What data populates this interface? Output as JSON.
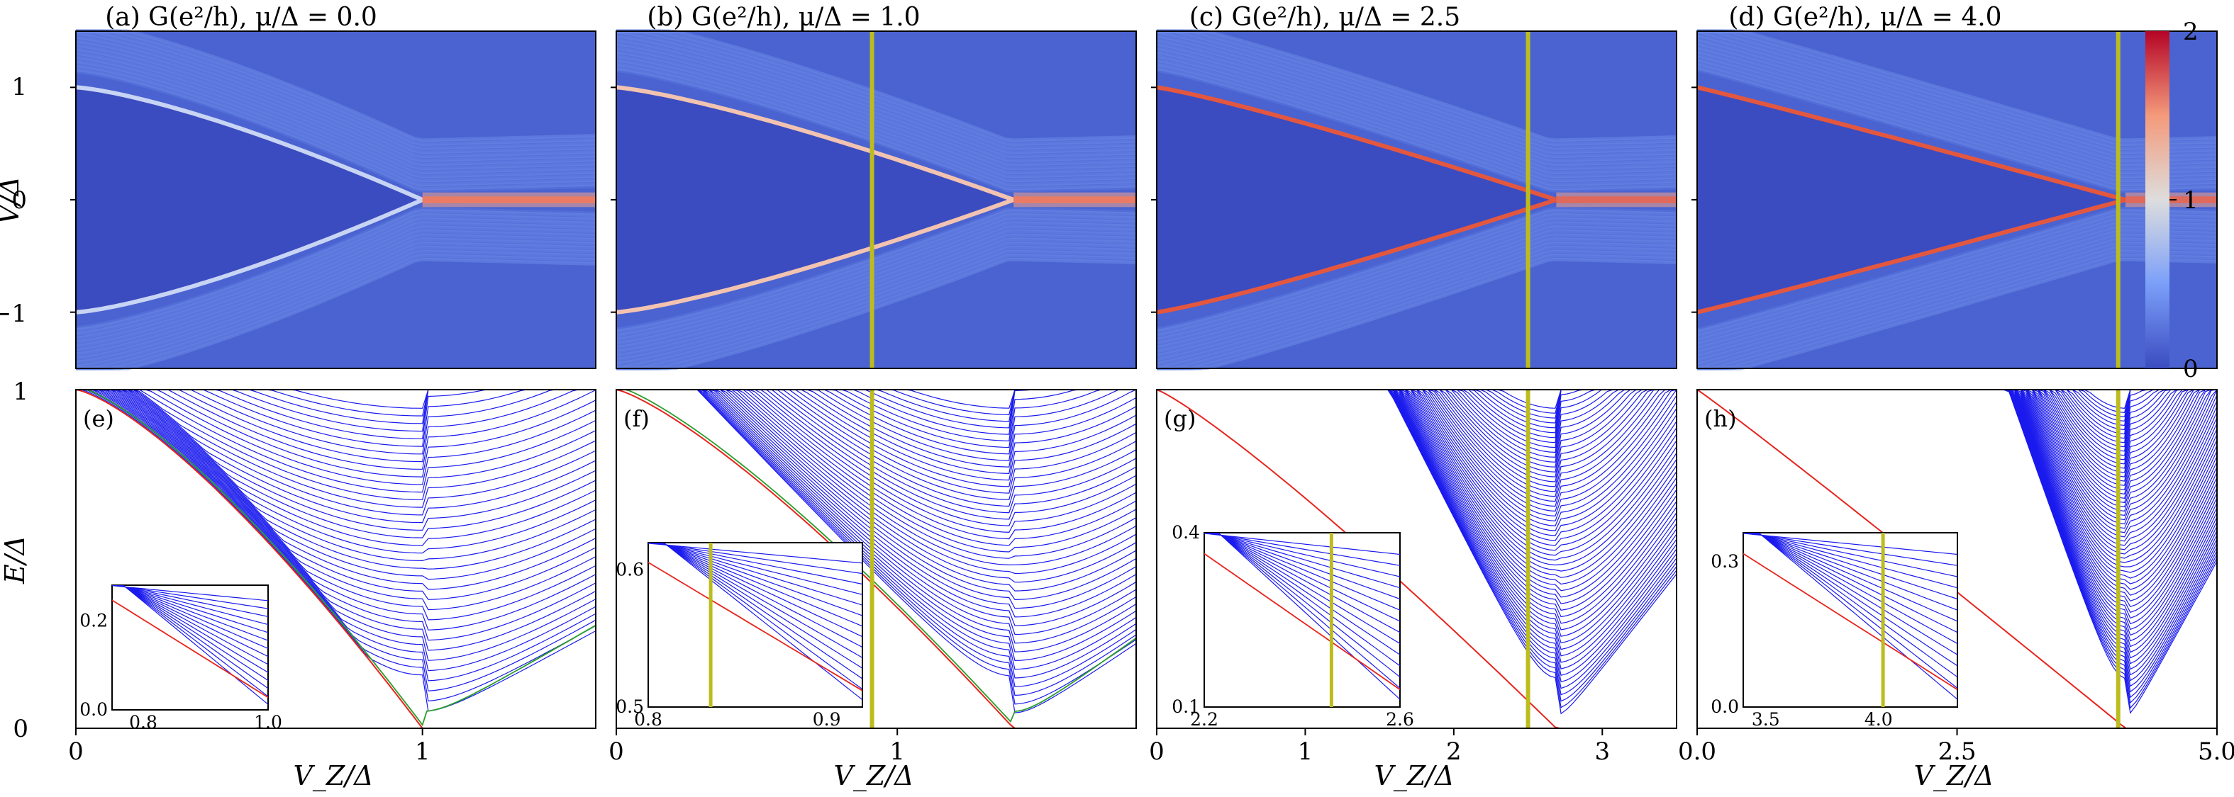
{
  "figure": {
    "colorbar": {
      "ticks": [
        "0",
        "1",
        "2"
      ],
      "range": [
        0,
        2
      ],
      "colormap": "coolwarm",
      "colors": [
        "#3b4cc0",
        "#dddddd",
        "#b40426"
      ]
    },
    "top_ylabel": "V/Δ",
    "bottom_ylabel": "E/Δ",
    "xlabel": "V_Z/Δ",
    "highlight_color": "#bcbc1e",
    "spectrum_color": "#1a1aee",
    "lowest_color": "#e8241c",
    "second_color": "#2a9d2a",
    "top_yticks": [
      "1",
      "0",
      "−1"
    ],
    "bottom_yticks": [
      "1",
      "0"
    ]
  },
  "chart_data": [
    {
      "type": "heatmap",
      "panel": "a",
      "title": "(a) G(e²/h), μ/Δ = 0.0",
      "mu": 0.0,
      "xlim": [
        0,
        1.5
      ],
      "ylim": [
        -1.5,
        1.5
      ],
      "vz_c": 1.0,
      "marker_x": null
    },
    {
      "type": "heatmap",
      "panel": "b",
      "title": "(b) G(e²/h), μ/Δ = 1.0",
      "mu": 1.0,
      "xlim": [
        0,
        1.85
      ],
      "ylim": [
        -1.5,
        1.5
      ],
      "vz_c": 1.414,
      "marker_x": 0.91
    },
    {
      "type": "heatmap",
      "panel": "c",
      "title": "(c) G(e²/h), μ/Δ = 2.5",
      "mu": 2.5,
      "xlim": [
        0,
        3.5
      ],
      "ylim": [
        -1.5,
        1.5
      ],
      "vz_c": 2.69,
      "marker_x": 2.5
    },
    {
      "type": "heatmap",
      "panel": "d",
      "title": "(d) G(e²/h), μ/Δ = 4.0",
      "mu": 4.0,
      "xlim": [
        0,
        5.0
      ],
      "ylim": [
        -1.5,
        1.5
      ],
      "vz_c": 4.12,
      "marker_x": 4.05
    },
    {
      "type": "line",
      "panel": "e",
      "label": "(e)",
      "mu": 0.0,
      "xlim": [
        0,
        1.5
      ],
      "ylim": [
        0,
        1
      ],
      "xticks": [
        {
          "v": 0,
          "t": "0"
        },
        {
          "v": 1,
          "t": "1"
        }
      ],
      "vz_c": 1.0,
      "marker_x": null,
      "n_levels": 36,
      "inset": {
        "xlim": [
          0.75,
          1.0
        ],
        "ylim": [
          0,
          0.28
        ],
        "xticks": [
          {
            "v": 0.8,
            "t": "0.8"
          },
          {
            "v": 1.0,
            "t": "1.0"
          }
        ],
        "yticks": [
          {
            "v": 0.0,
            "t": "0.0"
          },
          {
            "v": 0.2,
            "t": "0.2"
          }
        ],
        "marker_x": null
      }
    },
    {
      "type": "line",
      "panel": "f",
      "label": "(f)",
      "mu": 1.0,
      "xlim": [
        0,
        1.85
      ],
      "ylim": [
        0,
        1
      ],
      "xticks": [
        {
          "v": 0,
          "t": "0"
        },
        {
          "v": 1,
          "t": "1"
        }
      ],
      "vz_c": 1.414,
      "marker_x": 0.91,
      "n_levels": 42,
      "inset": {
        "xlim": [
          0.8,
          0.92
        ],
        "ylim": [
          0.5,
          0.62
        ],
        "xticks": [
          {
            "v": 0.8,
            "t": "0.8"
          },
          {
            "v": 0.9,
            "t": "0.9"
          }
        ],
        "yticks": [
          {
            "v": 0.5,
            "t": "0.5"
          },
          {
            "v": 0.6,
            "t": "0.6"
          }
        ],
        "marker_x": 0.835
      }
    },
    {
      "type": "line",
      "panel": "g",
      "label": "(g)",
      "mu": 2.5,
      "xlim": [
        0,
        3.5
      ],
      "ylim": [
        0,
        1
      ],
      "xticks": [
        {
          "v": 0,
          "t": "0"
        },
        {
          "v": 1,
          "t": "1"
        },
        {
          "v": 2,
          "t": "2"
        },
        {
          "v": 3,
          "t": "3"
        }
      ],
      "vz_c": 2.69,
      "marker_x": 2.5,
      "n_levels": 56,
      "inset": {
        "xlim": [
          2.2,
          2.6
        ],
        "ylim": [
          0.1,
          0.4
        ],
        "xticks": [
          {
            "v": 2.2,
            "t": "2.2"
          },
          {
            "v": 2.6,
            "t": "2.6"
          }
        ],
        "yticks": [
          {
            "v": 0.1,
            "t": "0.1"
          },
          {
            "v": 0.4,
            "t": "0.4"
          }
        ],
        "marker_x": 2.46
      }
    },
    {
      "type": "line",
      "panel": "h",
      "label": "(h)",
      "mu": 4.0,
      "xlim": [
        0,
        5.0
      ],
      "ylim": [
        0,
        1
      ],
      "xticks": [
        {
          "v": 0,
          "t": "0.0"
        },
        {
          "v": 2.5,
          "t": "2.5"
        },
        {
          "v": 5,
          "t": "5.0"
        }
      ],
      "vz_c": 4.12,
      "marker_x": 4.05,
      "n_levels": 64,
      "inset": {
        "xlim": [
          3.4,
          4.35
        ],
        "ylim": [
          0,
          0.36
        ],
        "xticks": [
          {
            "v": 3.5,
            "t": "3.5"
          },
          {
            "v": 4.0,
            "t": "4.0"
          }
        ],
        "yticks": [
          {
            "v": 0.0,
            "t": "0.0"
          },
          {
            "v": 0.3,
            "t": "0.3"
          }
        ],
        "marker_x": 4.02
      }
    }
  ]
}
